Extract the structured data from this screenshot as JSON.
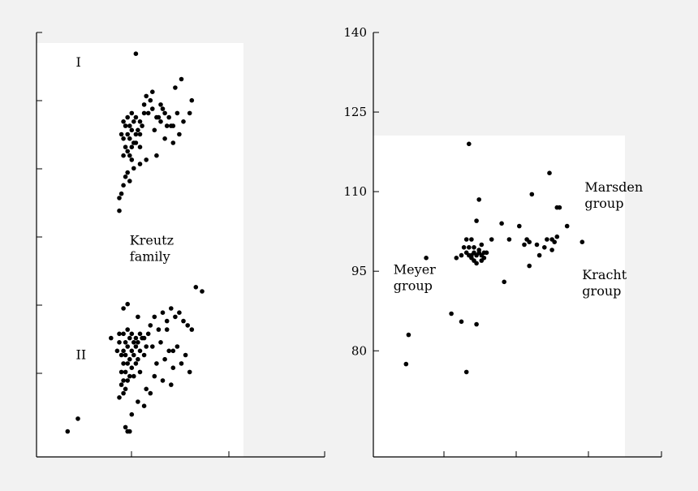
{
  "chart_data": [
    {
      "type": "scatter",
      "title": "",
      "xlabel": "",
      "ylabel": "",
      "grid": false,
      "xlim": [
        0,
        1
      ],
      "ylim": [
        0,
        1
      ],
      "annotations": [
        {
          "text": [
            "I"
          ],
          "x": 0.19,
          "y": 0.92
        },
        {
          "text": [
            "Kreutz",
            "family"
          ],
          "x": 0.45,
          "y": 0.5
        },
        {
          "text": [
            "II"
          ],
          "x": 0.19,
          "y": 0.23
        }
      ],
      "series": [
        {
          "x": [
            0.48,
            0.7,
            0.53,
            0.6,
            0.67,
            0.75,
            0.42,
            0.44,
            0.46,
            0.48,
            0.5,
            0.52,
            0.43,
            0.45,
            0.47,
            0.49,
            0.51,
            0.41,
            0.44,
            0.46,
            0.48,
            0.42,
            0.45,
            0.47,
            0.5,
            0.43,
            0.46,
            0.44,
            0.48,
            0.45,
            0.42,
            0.46,
            0.54,
            0.56,
            0.58,
            0.6,
            0.62,
            0.64,
            0.66,
            0.68,
            0.71,
            0.57,
            0.63,
            0.52,
            0.55,
            0.59,
            0.65,
            0.69,
            0.61,
            0.5,
            0.53,
            0.47,
            0.44,
            0.43,
            0.45,
            0.42,
            0.41,
            0.4,
            0.4,
            0.62,
            0.74,
            0.5,
            0.58,
            0.66,
            0.56
          ],
          "y": [
            0.95,
            0.89,
            0.85,
            0.83,
            0.87,
            0.84,
            0.79,
            0.8,
            0.81,
            0.8,
            0.79,
            0.81,
            0.78,
            0.78,
            0.79,
            0.77,
            0.78,
            0.76,
            0.76,
            0.77,
            0.76,
            0.75,
            0.75,
            0.74,
            0.76,
            0.73,
            0.73,
            0.72,
            0.74,
            0.71,
            0.71,
            0.7,
            0.81,
            0.82,
            0.8,
            0.79,
            0.81,
            0.8,
            0.78,
            0.81,
            0.79,
            0.77,
            0.78,
            0.83,
            0.84,
            0.8,
            0.78,
            0.76,
            0.82,
            0.69,
            0.7,
            0.68,
            0.67,
            0.66,
            0.65,
            0.64,
            0.62,
            0.61,
            0.58,
            0.75,
            0.81,
            0.73,
            0.71,
            0.74,
            0.86
          ]
        },
        {
          "x": [
            0.36,
            0.4,
            0.42,
            0.44,
            0.46,
            0.48,
            0.5,
            0.52,
            0.54,
            0.4,
            0.43,
            0.45,
            0.47,
            0.49,
            0.51,
            0.39,
            0.42,
            0.44,
            0.46,
            0.48,
            0.5,
            0.53,
            0.41,
            0.43,
            0.45,
            0.47,
            0.49,
            0.52,
            0.42,
            0.44,
            0.46,
            0.48,
            0.41,
            0.43,
            0.45,
            0.42,
            0.44,
            0.41,
            0.43,
            0.42,
            0.4,
            0.47,
            0.5,
            0.55,
            0.57,
            0.59,
            0.61,
            0.63,
            0.65,
            0.67,
            0.69,
            0.71,
            0.73,
            0.75,
            0.77,
            0.8,
            0.56,
            0.6,
            0.64,
            0.68,
            0.72,
            0.58,
            0.62,
            0.66,
            0.7,
            0.74,
            0.57,
            0.61,
            0.65,
            0.53,
            0.55,
            0.49,
            0.52,
            0.46,
            0.43,
            0.44,
            0.45,
            0.42,
            0.15,
            0.2,
            0.63,
            0.66,
            0.44,
            0.49
          ],
          "y": [
            0.28,
            0.29,
            0.29,
            0.3,
            0.29,
            0.28,
            0.29,
            0.28,
            0.29,
            0.27,
            0.27,
            0.28,
            0.27,
            0.27,
            0.28,
            0.25,
            0.25,
            0.26,
            0.25,
            0.26,
            0.25,
            0.26,
            0.24,
            0.24,
            0.23,
            0.24,
            0.23,
            0.24,
            0.22,
            0.22,
            0.21,
            0.22,
            0.2,
            0.2,
            0.19,
            0.18,
            0.18,
            0.17,
            0.16,
            0.15,
            0.14,
            0.19,
            0.2,
            0.31,
            0.33,
            0.3,
            0.34,
            0.32,
            0.35,
            0.33,
            0.34,
            0.32,
            0.31,
            0.3,
            0.4,
            0.39,
            0.26,
            0.27,
            0.25,
            0.26,
            0.24,
            0.22,
            0.23,
            0.21,
            0.22,
            0.2,
            0.19,
            0.18,
            0.17,
            0.16,
            0.15,
            0.13,
            0.12,
            0.1,
            0.07,
            0.06,
            0.06,
            0.35,
            0.06,
            0.09,
            0.3,
            0.25,
            0.36,
            0.33
          ]
        }
      ]
    },
    {
      "type": "scatter",
      "title": "",
      "xlabel": "",
      "ylabel": "",
      "grid": false,
      "xlim": [
        0,
        1
      ],
      "ylim": [
        60,
        140
      ],
      "yticks": [
        80,
        95,
        110,
        125,
        140
      ],
      "ytick_labels": [
        "80",
        "95",
        "110",
        "125",
        "140"
      ],
      "annotations": [
        {
          "text": [
            "Marsden",
            "group"
          ],
          "x": 0.84,
          "y": 110
        },
        {
          "text": [
            "Meyer",
            "group"
          ],
          "x": 0.08,
          "y": 94.5
        },
        {
          "text": [
            "Kracht",
            "group"
          ],
          "x": 0.83,
          "y": 93.5
        }
      ],
      "series": [
        {
          "x": [
            0.38,
            0.42,
            0.63,
            0.7,
            0.21,
            0.33,
            0.35,
            0.37,
            0.38,
            0.39,
            0.4,
            0.41,
            0.42,
            0.43,
            0.44,
            0.45,
            0.36,
            0.38,
            0.4,
            0.42,
            0.44,
            0.37,
            0.39,
            0.41,
            0.43,
            0.4,
            0.41,
            0.43,
            0.39,
            0.47,
            0.51,
            0.58,
            0.54,
            0.6,
            0.61,
            0.62,
            0.65,
            0.68,
            0.69,
            0.71,
            0.72,
            0.73,
            0.74,
            0.77,
            0.83,
            0.73,
            0.66,
            0.71,
            0.52,
            0.62,
            0.31,
            0.35,
            0.41,
            0.37,
            0.13,
            0.14
          ],
          "y": [
            119.0,
            108.5,
            109.5,
            113.5,
            97.5,
            97.5,
            98.0,
            98.5,
            98.0,
            97.5,
            98.5,
            98.0,
            99.0,
            98.0,
            97.5,
            98.5,
            99.5,
            99.5,
            99.5,
            98.5,
            98.5,
            101.0,
            101.0,
            104.5,
            100.0,
            97.0,
            96.5,
            97.0,
            98.0,
            101.0,
            104.0,
            103.5,
            101.0,
            100.0,
            101.0,
            100.5,
            100.0,
            99.5,
            101.0,
            101.0,
            100.5,
            107.0,
            107.0,
            103.5,
            100.5,
            101.5,
            98.0,
            99.0,
            93.0,
            96.0,
            87.0,
            85.5,
            85.0,
            76.0,
            77.5,
            83.0
          ]
        }
      ]
    }
  ]
}
